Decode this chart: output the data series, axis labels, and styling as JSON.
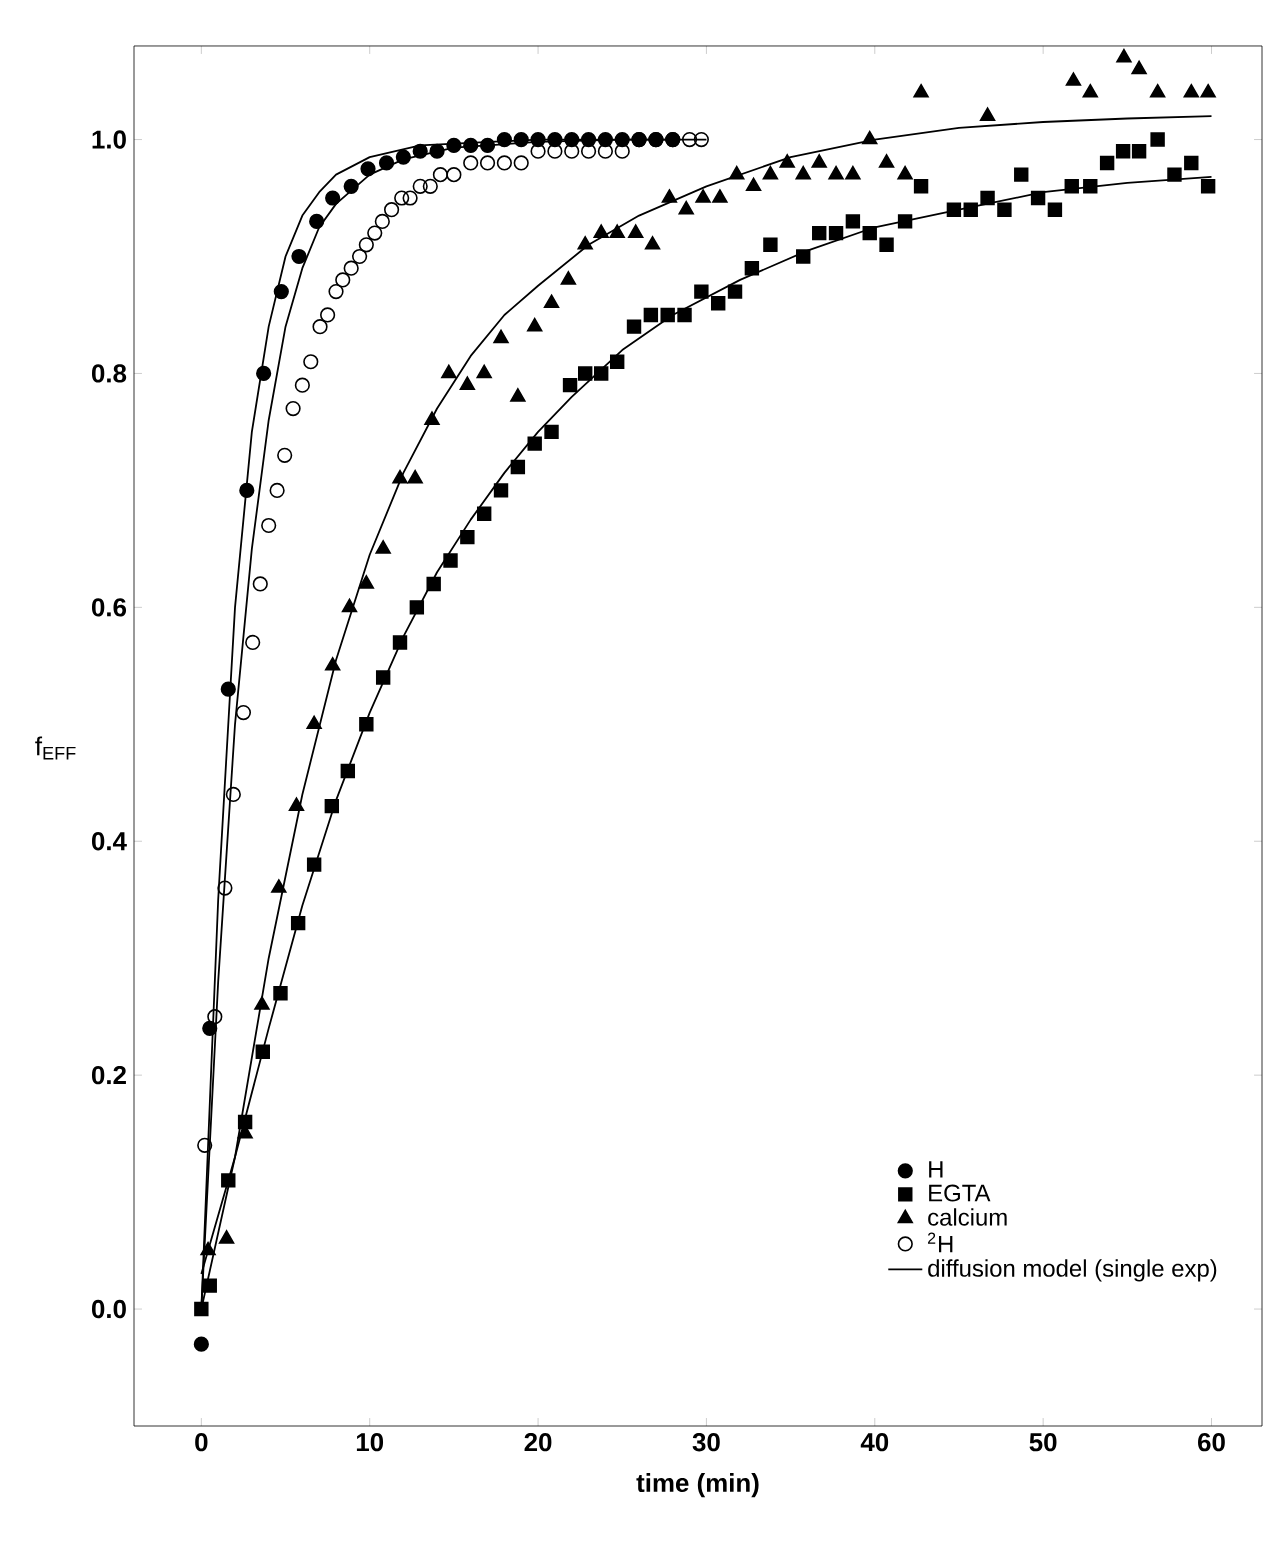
{
  "chart_data": {
    "type": "scatter",
    "xlabel": "time (min)",
    "ylabel": "f$_{EFF}$",
    "xlim": [
      -4,
      63
    ],
    "ylim": [
      -0.1,
      1.08
    ],
    "xticks": [
      0,
      10,
      20,
      30,
      40,
      50,
      60
    ],
    "yticks": [
      {
        "value": 0,
        "label": "0.0"
      },
      {
        "value": 0.2,
        "label": "0.2"
      },
      {
        "value": 0.4,
        "label": "0.4"
      },
      {
        "value": 0.6,
        "label": "0.6"
      },
      {
        "value": 0.8,
        "label": "0.8"
      },
      {
        "value": 1.0,
        "label": "1.0"
      }
    ],
    "grid": false,
    "legend": "bottom right",
    "line_style": "solid",
    "series": [
      {
        "name": "H",
        "marker": "circle",
        "color": "#000000",
        "x": [
          0,
          0.5,
          1.6,
          2.7,
          3.7,
          4.75,
          5.8,
          6.85,
          7.8,
          8.9,
          9.9,
          11,
          12,
          13,
          14,
          15,
          16,
          17,
          18,
          19,
          20,
          21,
          22,
          23,
          24,
          25,
          26,
          27,
          28
        ],
        "values": [
          -0.03,
          0.24,
          0.53,
          0.7,
          0.8,
          0.87,
          0.9,
          0.93,
          0.95,
          0.96,
          0.975,
          0.98,
          0.985,
          0.99,
          0.99,
          0.995,
          0.995,
          0.995,
          1.0,
          1.0,
          1.0,
          1.0,
          1.0,
          1.0,
          1.0,
          1.0,
          1.0,
          1.0,
          1.0
        ]
      },
      {
        "name": "EGTA",
        "marker": "square",
        "color": "#000000",
        "x": [
          0,
          0.5,
          1.6,
          2.6,
          3.65,
          4.7,
          5.75,
          6.7,
          7.75,
          8.7,
          9.8,
          10.8,
          11.8,
          12.8,
          13.8,
          14.8,
          15.8,
          16.8,
          17.8,
          18.8,
          19.8,
          20.8,
          21.9,
          22.8,
          23.75,
          24.7,
          25.7,
          26.7,
          27.7,
          28.7,
          29.7,
          30.7,
          31.7,
          32.7,
          33.8,
          35.75,
          36.7,
          37.7,
          38.7,
          39.7,
          40.7,
          41.8,
          42.75,
          44.7,
          45.7,
          46.7,
          47.7,
          48.7,
          49.7,
          50.7,
          51.7,
          52.8,
          53.8,
          54.75,
          55.7,
          56.8,
          57.8,
          58.8,
          59.8
        ],
        "values": [
          0.0,
          0.02,
          0.11,
          0.16,
          0.22,
          0.27,
          0.33,
          0.38,
          0.43,
          0.46,
          0.5,
          0.54,
          0.57,
          0.6,
          0.62,
          0.64,
          0.66,
          0.68,
          0.7,
          0.72,
          0.74,
          0.75,
          0.79,
          0.8,
          0.8,
          0.81,
          0.84,
          0.85,
          0.85,
          0.85,
          0.87,
          0.86,
          0.87,
          0.89,
          0.91,
          0.9,
          0.92,
          0.92,
          0.93,
          0.92,
          0.91,
          0.93,
          0.96,
          0.94,
          0.94,
          0.95,
          0.94,
          0.97,
          0.95,
          0.94,
          0.96,
          0.96,
          0.98,
          0.99,
          0.99,
          1.0,
          0.97,
          0.98,
          0.96
        ]
      },
      {
        "name": "calcium",
        "marker": "triangle",
        "color": "#000000",
        "x": [
          0.4,
          1.5,
          2.6,
          3.6,
          4.6,
          5.65,
          6.7,
          7.8,
          8.8,
          9.8,
          10.8,
          11.8,
          12.7,
          13.7,
          14.7,
          15.8,
          16.8,
          17.8,
          18.8,
          19.8,
          20.8,
          21.8,
          22.8,
          23.75,
          24.7,
          25.8,
          26.8,
          27.8,
          28.8,
          29.8,
          30.8,
          31.8,
          32.8,
          33.8,
          34.8,
          35.75,
          36.7,
          37.7,
          38.7,
          39.7,
          40.7,
          41.8,
          42.75,
          46.7,
          51.8,
          52.8,
          54.8,
          55.7,
          56.8,
          58.8,
          59.8
        ],
        "values": [
          0.05,
          0.06,
          0.15,
          0.26,
          0.36,
          0.43,
          0.5,
          0.55,
          0.6,
          0.62,
          0.65,
          0.71,
          0.71,
          0.76,
          0.8,
          0.79,
          0.8,
          0.83,
          0.78,
          0.84,
          0.86,
          0.88,
          0.91,
          0.92,
          0.92,
          0.92,
          0.91,
          0.95,
          0.94,
          0.95,
          0.95,
          0.97,
          0.96,
          0.97,
          0.98,
          0.97,
          0.98,
          0.97,
          0.97,
          1.0,
          0.98,
          0.97,
          1.04,
          1.02,
          1.05,
          1.04,
          1.07,
          1.06,
          1.04,
          1.04,
          1.04
        ]
      },
      {
        "name": "$^{2}$H",
        "marker": "circle",
        "color": "#000000",
        "x": [
          0.2,
          0.8,
          1.4,
          1.9,
          2.5,
          3.05,
          3.5,
          4.0,
          4.5,
          4.95,
          5.45,
          6.0,
          6.5,
          7.05,
          7.5,
          8.0,
          8.4,
          8.9,
          9.4,
          9.8,
          10.3,
          10.75,
          11.3,
          11.9,
          12.4,
          13,
          13.6,
          14.2,
          15,
          16,
          17,
          18,
          19,
          20,
          21,
          22,
          23,
          24,
          25,
          26,
          27,
          28,
          29,
          29.7
        ],
        "values": [
          0.14,
          0.25,
          0.36,
          0.44,
          0.51,
          0.57,
          0.62,
          0.67,
          0.7,
          0.73,
          0.77,
          0.79,
          0.81,
          0.84,
          0.85,
          0.87,
          0.88,
          0.89,
          0.9,
          0.91,
          0.92,
          0.93,
          0.94,
          0.95,
          0.95,
          0.96,
          0.96,
          0.97,
          0.97,
          0.98,
          0.98,
          0.98,
          0.98,
          0.99,
          0.99,
          0.99,
          0.99,
          0.99,
          0.99,
          1.0,
          1.0,
          1.0,
          1.0,
          1.0
        ]
      },
      {
        "name": "diffusion model (single exp)",
        "type": "line",
        "color": "#000000",
        "x": [
          0,
          1,
          2,
          3,
          4,
          5,
          6,
          7,
          8,
          10,
          13,
          20,
          28
        ],
        "values": [
          0,
          0.35,
          0.6,
          0.75,
          0.84,
          0.9,
          0.935,
          0.955,
          0.97,
          0.985,
          0.995,
          1.0,
          1.0
        ]
      },
      {
        "type": "line",
        "color": "#000000",
        "x": [
          0,
          1,
          2,
          3,
          4,
          5,
          6,
          7,
          8,
          10,
          12,
          15,
          20,
          25,
          30
        ],
        "values": [
          0,
          0.28,
          0.5,
          0.65,
          0.76,
          0.84,
          0.89,
          0.925,
          0.945,
          0.97,
          0.983,
          0.993,
          0.998,
          1.0,
          1.0
        ]
      },
      {
        "type": "line",
        "color": "#000000",
        "x": [
          0,
          2,
          4,
          6,
          8,
          10,
          12,
          14,
          16,
          18,
          20,
          23,
          26,
          30,
          35,
          40,
          45,
          50,
          55,
          60
        ],
        "values": [
          0.03,
          0.13,
          0.3,
          0.44,
          0.555,
          0.645,
          0.715,
          0.77,
          0.815,
          0.85,
          0.875,
          0.91,
          0.935,
          0.96,
          0.985,
          1.0,
          1.01,
          1.015,
          1.018,
          1.02
        ]
      },
      {
        "type": "line",
        "color": "#000000",
        "x": [
          0,
          2,
          4,
          6,
          8,
          10,
          12,
          14,
          16,
          18,
          20,
          22,
          25,
          28,
          32,
          36,
          40,
          45,
          50,
          55,
          60
        ],
        "values": [
          0,
          0.13,
          0.24,
          0.345,
          0.435,
          0.51,
          0.575,
          0.63,
          0.675,
          0.715,
          0.75,
          0.78,
          0.82,
          0.85,
          0.88,
          0.905,
          0.925,
          0.94,
          0.955,
          0.963,
          0.968
        ]
      }
    ]
  }
}
